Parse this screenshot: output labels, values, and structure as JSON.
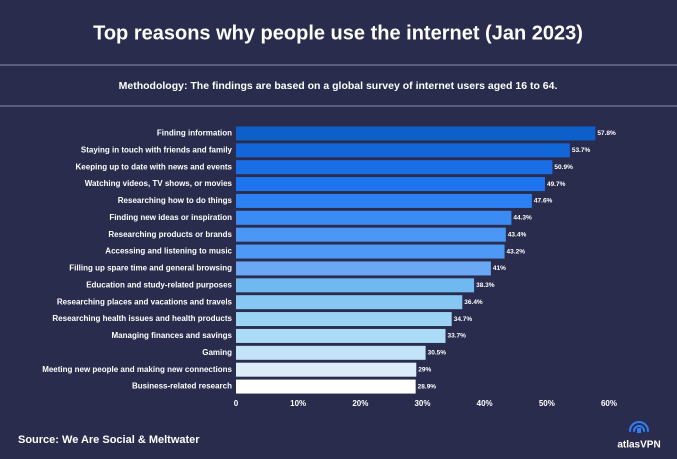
{
  "chart_data": {
    "type": "barh",
    "title": "Top reasons why people use the internet (Jan 2023)",
    "subtitle": "Methodology: The findings are based on a global survey of internet users aged 16 to 64.",
    "categories": [
      "Finding information",
      "Staying in touch with friends and family",
      "Keeping up to date with news and events",
      "Watching videos, TV shows, or movies",
      "Researching how to do things",
      "Finding new ideas or inspiration",
      "Researching products or brands",
      "Accessing and listening to music",
      "Filling up spare time and general browsing",
      "Education and study-related purposes",
      "Researching places and vacations and travels",
      "Researching health issues and health products",
      "Managing finances and savings",
      "Gaming",
      "Meeting new people and making new connections",
      "Business-related research"
    ],
    "values": [
      57.8,
      53.7,
      50.9,
      49.7,
      47.6,
      44.3,
      43.4,
      43.2,
      41,
      38.3,
      36.4,
      34.7,
      33.7,
      30.5,
      29,
      28.9
    ],
    "value_labels": [
      "57.8%",
      "53.7%",
      "50.9%",
      "49.7%",
      "47.6%",
      "44.3%",
      "43.4%",
      "43.2%",
      "41%",
      "38.3%",
      "36.4%",
      "34.7%",
      "33.7%",
      "30.5%",
      "29%",
      "28.9%"
    ],
    "colors": [
      "#0d5fc9",
      "#1266d8",
      "#1a6fe6",
      "#1e74ee",
      "#2b80f2",
      "#3a8cf4",
      "#4a97f5",
      "#4d99f5",
      "#6aa8f5",
      "#6fb9f0",
      "#86c8f2",
      "#9bd3f5",
      "#acdbf6",
      "#c3e4f8",
      "#dcedfa",
      "#ffffff"
    ],
    "xlim": [
      0,
      60
    ],
    "xticks": [
      0,
      {
        "value": 10,
        "label": "10%"
      },
      {
        "value": 20,
        "label": "20%"
      },
      {
        "value": 30,
        "label": "30%"
      },
      {
        "value": 40,
        "label": "40%"
      },
      {
        "value": 50,
        "label": "50%"
      },
      {
        "value": 60,
        "label": "60%"
      }
    ],
    "source": "Source: We Are Social & Meltwater",
    "brand": "atlasVPN"
  }
}
